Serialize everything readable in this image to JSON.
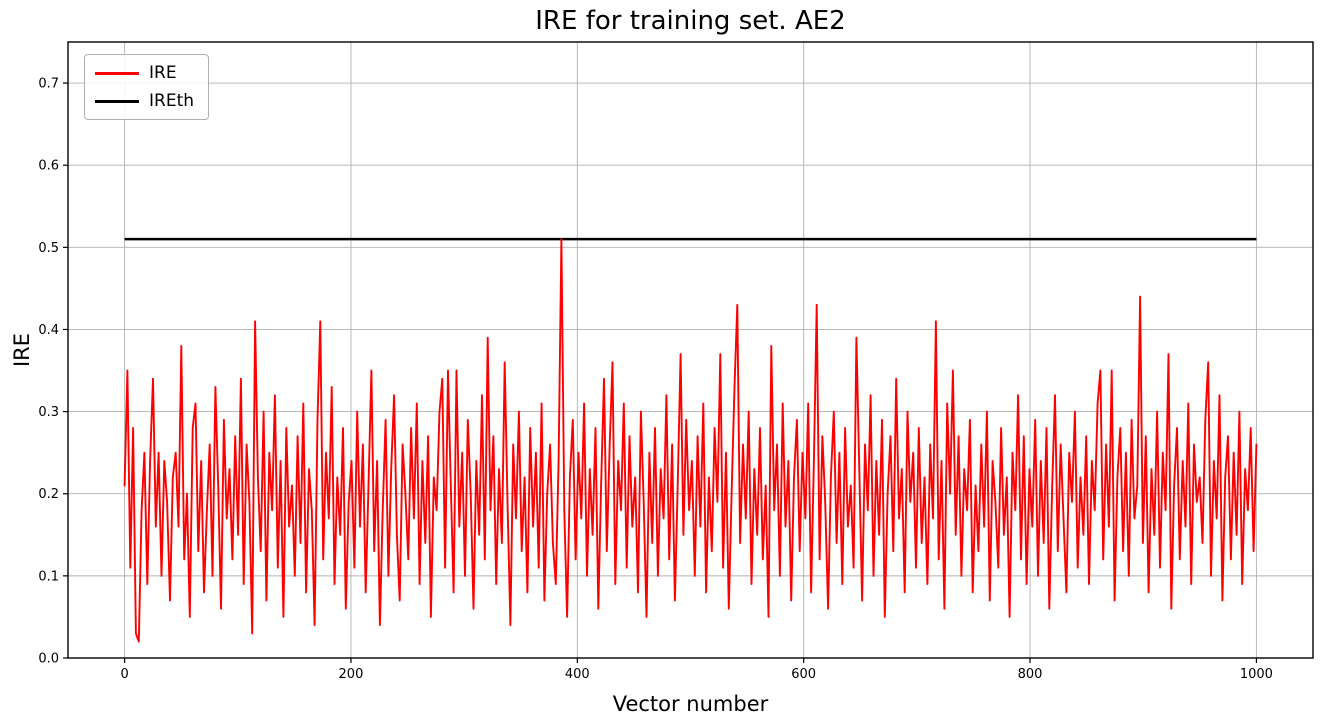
{
  "chart_data": {
    "type": "line",
    "title": "IRE for training set. AE2",
    "xlabel": "Vector number",
    "ylabel": "IRE",
    "xlim": [
      -50,
      1050
    ],
    "ylim": [
      0,
      0.75
    ],
    "xtick_values": [
      0,
      200,
      400,
      600,
      800,
      1000
    ],
    "xtick_labels": [
      "0",
      "200",
      "400",
      "600",
      "800",
      "1000"
    ],
    "ytick_values": [
      0.0,
      0.1,
      0.2,
      0.3,
      0.4,
      0.5,
      0.6,
      0.7
    ],
    "ytick_labels": [
      "0.0",
      "0.1",
      "0.2",
      "0.3",
      "0.4",
      "0.5",
      "0.6",
      "0.7"
    ],
    "grid": true,
    "grid_color": "#b0b0b0",
    "legend_position": "upper left",
    "legend": {
      "entries": [
        {
          "label": "IRE",
          "color": "#ff0000",
          "line_width": 3
        },
        {
          "label": "IREth",
          "color": "#000000",
          "line_width": 3
        }
      ]
    },
    "threshold": {
      "name": "IREth",
      "value": 0.51,
      "color": "#000000",
      "x_start": 0,
      "x_end": 1000
    },
    "series": [
      {
        "name": "IRE",
        "color": "#ff0000",
        "x_start": 0,
        "x_end": 1000,
        "values": [
          0.21,
          0.35,
          0.11,
          0.28,
          0.03,
          0.02,
          0.18,
          0.25,
          0.09,
          0.24,
          0.34,
          0.16,
          0.25,
          0.1,
          0.24,
          0.19,
          0.07,
          0.22,
          0.25,
          0.16,
          0.38,
          0.12,
          0.2,
          0.05,
          0.28,
          0.31,
          0.13,
          0.24,
          0.08,
          0.18,
          0.26,
          0.1,
          0.33,
          0.21,
          0.06,
          0.29,
          0.17,
          0.23,
          0.12,
          0.27,
          0.15,
          0.34,
          0.09,
          0.26,
          0.19,
          0.03,
          0.41,
          0.22,
          0.13,
          0.3,
          0.07,
          0.25,
          0.18,
          0.32,
          0.11,
          0.24,
          0.05,
          0.28,
          0.16,
          0.21,
          0.1,
          0.27,
          0.14,
          0.31,
          0.08,
          0.23,
          0.18,
          0.04,
          0.29,
          0.41,
          0.12,
          0.25,
          0.17,
          0.33,
          0.09,
          0.22,
          0.15,
          0.28,
          0.06,
          0.19,
          0.24,
          0.11,
          0.3,
          0.16,
          0.26,
          0.08,
          0.21,
          0.35,
          0.13,
          0.24,
          0.04,
          0.18,
          0.29,
          0.1,
          0.23,
          0.32,
          0.15,
          0.07,
          0.26,
          0.2,
          0.12,
          0.28,
          0.17,
          0.31,
          0.09,
          0.24,
          0.14,
          0.27,
          0.05,
          0.22,
          0.18,
          0.3,
          0.34,
          0.11,
          0.35,
          0.21,
          0.08,
          0.35,
          0.16,
          0.25,
          0.1,
          0.29,
          0.2,
          0.06,
          0.24,
          0.15,
          0.32,
          0.12,
          0.39,
          0.18,
          0.27,
          0.09,
          0.23,
          0.14,
          0.36,
          0.19,
          0.04,
          0.26,
          0.17,
          0.3,
          0.13,
          0.22,
          0.08,
          0.28,
          0.16,
          0.25,
          0.11,
          0.31,
          0.07,
          0.2,
          0.26,
          0.14,
          0.09,
          0.24,
          0.51,
          0.18,
          0.05,
          0.22,
          0.29,
          0.12,
          0.25,
          0.17,
          0.31,
          0.1,
          0.23,
          0.15,
          0.28,
          0.06,
          0.21,
          0.34,
          0.13,
          0.26,
          0.36,
          0.09,
          0.24,
          0.18,
          0.31,
          0.11,
          0.27,
          0.16,
          0.22,
          0.08,
          0.3,
          0.19,
          0.05,
          0.25,
          0.14,
          0.28,
          0.1,
          0.23,
          0.17,
          0.32,
          0.12,
          0.26,
          0.07,
          0.21,
          0.37,
          0.15,
          0.29,
          0.18,
          0.24,
          0.1,
          0.27,
          0.16,
          0.31,
          0.08,
          0.22,
          0.13,
          0.28,
          0.19,
          0.37,
          0.11,
          0.25,
          0.06,
          0.2,
          0.33,
          0.43,
          0.14,
          0.26,
          0.17,
          0.3,
          0.09,
          0.23,
          0.15,
          0.28,
          0.12,
          0.21,
          0.05,
          0.38,
          0.18,
          0.26,
          0.1,
          0.31,
          0.16,
          0.24,
          0.07,
          0.22,
          0.29,
          0.13,
          0.25,
          0.17,
          0.31,
          0.08,
          0.24,
          0.43,
          0.12,
          0.27,
          0.19,
          0.06,
          0.22,
          0.3,
          0.14,
          0.25,
          0.09,
          0.28,
          0.16,
          0.21,
          0.11,
          0.39,
          0.23,
          0.07,
          0.26,
          0.18,
          0.32,
          0.1,
          0.24,
          0.15,
          0.29,
          0.05,
          0.2,
          0.27,
          0.13,
          0.34,
          0.17,
          0.23,
          0.08,
          0.3,
          0.19,
          0.25,
          0.11,
          0.28,
          0.14,
          0.22,
          0.09,
          0.26,
          0.17,
          0.41,
          0.12,
          0.24,
          0.06,
          0.31,
          0.2,
          0.35,
          0.15,
          0.27,
          0.1,
          0.23,
          0.18,
          0.29,
          0.08,
          0.21,
          0.13,
          0.26,
          0.16,
          0.3,
          0.07,
          0.24,
          0.19,
          0.11,
          0.28,
          0.15,
          0.22,
          0.05,
          0.25,
          0.18,
          0.32,
          0.12,
          0.27,
          0.09,
          0.23,
          0.16,
          0.29,
          0.1,
          0.24,
          0.14,
          0.28,
          0.06,
          0.21,
          0.32,
          0.13,
          0.26,
          0.17,
          0.08,
          0.25,
          0.19,
          0.3,
          0.11,
          0.22,
          0.15,
          0.27,
          0.09,
          0.24,
          0.18,
          0.31,
          0.35,
          0.12,
          0.26,
          0.16,
          0.35,
          0.07,
          0.22,
          0.28,
          0.13,
          0.25,
          0.1,
          0.29,
          0.17,
          0.21,
          0.44,
          0.14,
          0.27,
          0.08,
          0.23,
          0.15,
          0.3,
          0.11,
          0.25,
          0.18,
          0.37,
          0.06,
          0.21,
          0.28,
          0.12,
          0.24,
          0.16,
          0.31,
          0.09,
          0.26,
          0.19,
          0.22,
          0.14,
          0.29,
          0.36,
          0.1,
          0.24,
          0.17,
          0.32,
          0.07,
          0.22,
          0.27,
          0.12,
          0.25,
          0.15,
          0.3,
          0.09,
          0.23,
          0.18,
          0.28,
          0.13,
          0.26
        ]
      }
    ]
  }
}
